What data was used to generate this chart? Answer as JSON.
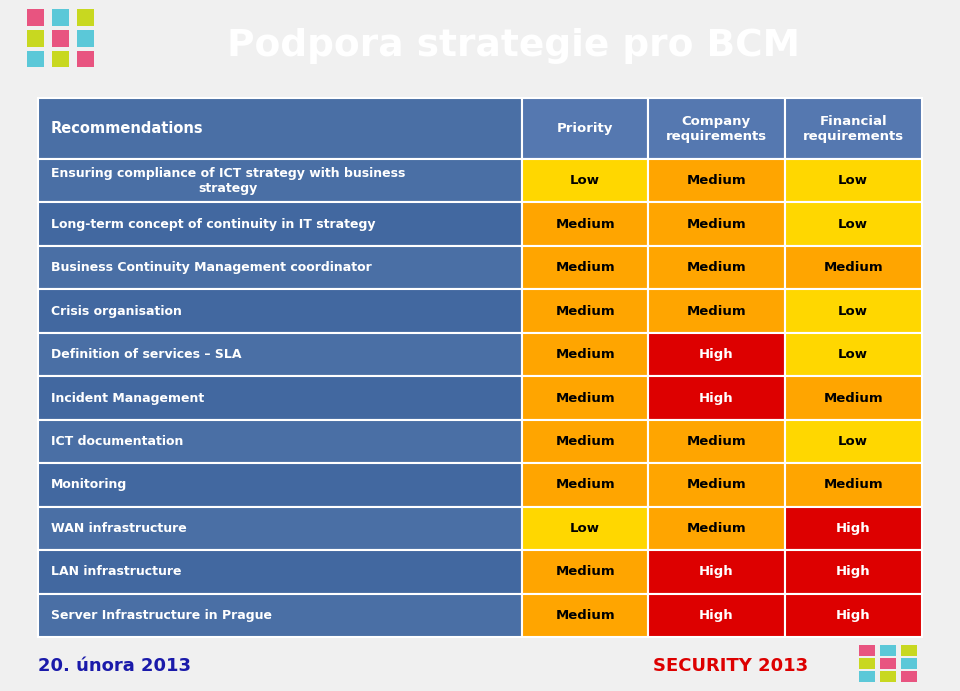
{
  "title": "Podpora strategie pro BCM",
  "title_color": "#ffffff",
  "title_fontsize": 27,
  "header_bg": "#2d3b7a",
  "page_bg": "#f0f0f0",
  "col_headers": [
    "Priority",
    "Company\nrequirements",
    "Financial\nrequirements"
  ],
  "row_label": "Recommendations",
  "header_dot_colors": [
    [
      "#e85480",
      "#5bc8d8",
      "#c8d820"
    ],
    [
      "#c8d820",
      "#e85480",
      "#5bc8d8"
    ],
    [
      "#5bc8d8",
      "#c8d820",
      "#e85480"
    ]
  ],
  "rows": [
    {
      "label": "Ensuring compliance of ICT strategy with business\nstrategy",
      "values": [
        "Low",
        "Medium",
        "Low"
      ],
      "colors": [
        "#FFD700",
        "#FFA500",
        "#FFD700"
      ]
    },
    {
      "label": "Long-term concept of continuity in IT strategy",
      "values": [
        "Medium",
        "Medium",
        "Low"
      ],
      "colors": [
        "#FFA500",
        "#FFA500",
        "#FFD700"
      ]
    },
    {
      "label": "Business Continuity Management coordinator",
      "values": [
        "Medium",
        "Medium",
        "Medium"
      ],
      "colors": [
        "#FFA500",
        "#FFA500",
        "#FFA500"
      ]
    },
    {
      "label": "Crisis organisation",
      "values": [
        "Medium",
        "Medium",
        "Low"
      ],
      "colors": [
        "#FFA500",
        "#FFA500",
        "#FFD700"
      ]
    },
    {
      "label": "Definition of services – SLA",
      "values": [
        "Medium",
        "High",
        "Low"
      ],
      "colors": [
        "#FFA500",
        "#DD0000",
        "#FFD700"
      ]
    },
    {
      "label": "Incident Management",
      "values": [
        "Medium",
        "High",
        "Medium"
      ],
      "colors": [
        "#FFA500",
        "#DD0000",
        "#FFA500"
      ]
    },
    {
      "label": "ICT documentation",
      "values": [
        "Medium",
        "Medium",
        "Low"
      ],
      "colors": [
        "#FFA500",
        "#FFA500",
        "#FFD700"
      ]
    },
    {
      "label": "Monitoring",
      "values": [
        "Medium",
        "Medium",
        "Medium"
      ],
      "colors": [
        "#FFA500",
        "#FFA500",
        "#FFA500"
      ]
    },
    {
      "label": "WAN infrastructure",
      "values": [
        "Low",
        "Medium",
        "High"
      ],
      "colors": [
        "#FFD700",
        "#FFA500",
        "#DD0000"
      ]
    },
    {
      "label": "LAN infrastructure",
      "values": [
        "Medium",
        "High",
        "High"
      ],
      "colors": [
        "#FFA500",
        "#DD0000",
        "#DD0000"
      ]
    },
    {
      "label": "Server Infrastructure in Prague",
      "values": [
        "Medium",
        "High",
        "High"
      ],
      "colors": [
        "#FFA500",
        "#DD0000",
        "#DD0000"
      ]
    }
  ],
  "footer_left": "20. února 2013",
  "footer_right": "SECURITY 2013",
  "footer_left_color": "#1a1aaa",
  "footer_right_color": "#DD0000",
  "table_label_bg": "#4a6fa5",
  "table_header_col_bg": "#5578b0",
  "cell_border": "#ffffff",
  "label_text_color": "#ffffff",
  "value_text_color": "#000000",
  "high_text_color": "#DD0000",
  "footer_dot_colors": [
    [
      "#e85480",
      "#5bc8d8",
      "#c8d820"
    ],
    [
      "#c8d820",
      "#e85480",
      "#5bc8d8"
    ],
    [
      "#5bc8d8",
      "#c8d820",
      "#e85480"
    ]
  ]
}
